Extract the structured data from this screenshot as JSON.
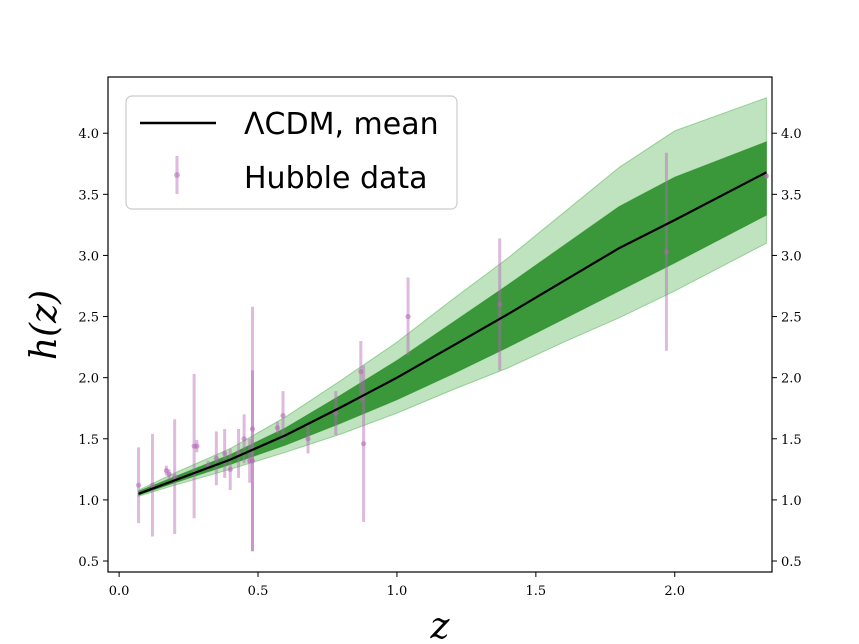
{
  "chart_data": {
    "type": "line",
    "xlabel": "z",
    "ylabel": "h(z)",
    "xlim": [
      -0.04,
      2.35
    ],
    "ylim": [
      0.41,
      4.46
    ],
    "xticks": [
      0.0,
      0.5,
      1.0,
      1.5,
      2.0
    ],
    "xtick_labels": [
      "0.0",
      "0.5",
      "1.0",
      "1.5",
      "2.0"
    ],
    "yticks": [
      0.5,
      1.0,
      1.5,
      2.0,
      2.5,
      3.0,
      3.5,
      4.0
    ],
    "ytick_labels": [
      "0.5",
      "1.0",
      "1.5",
      "2.0",
      "2.5",
      "3.0",
      "3.5",
      "4.0"
    ],
    "legend_position": "top-left",
    "colors": {
      "mean_line": "#000000",
      "band_outer": "#2ca02c",
      "band_inner": "#228b22",
      "data_points": "#b565b5"
    },
    "series": [
      {
        "name": "ΛCDM, mean",
        "kind": "line",
        "x": [
          0.07,
          0.2,
          0.4,
          0.6,
          0.8,
          1.0,
          1.2,
          1.4,
          1.6,
          1.8,
          2.0,
          2.33
        ],
        "y": [
          1.05,
          1.16,
          1.33,
          1.53,
          1.76,
          2.0,
          2.26,
          2.52,
          2.79,
          3.06,
          3.29,
          3.68
        ],
        "band_1sigma_lower": [
          1.04,
          1.14,
          1.29,
          1.45,
          1.63,
          1.82,
          2.03,
          2.25,
          2.48,
          2.71,
          2.94,
          3.33
        ],
        "band_1sigma_upper": [
          1.07,
          1.19,
          1.37,
          1.59,
          1.86,
          2.14,
          2.45,
          2.76,
          3.08,
          3.4,
          3.64,
          3.93
        ],
        "band_2sigma_lower": [
          1.03,
          1.12,
          1.25,
          1.39,
          1.54,
          1.71,
          1.9,
          2.08,
          2.29,
          2.49,
          2.71,
          3.1
        ],
        "band_2sigma_upper": [
          1.08,
          1.22,
          1.42,
          1.68,
          1.98,
          2.29,
          2.64,
          2.98,
          3.35,
          3.72,
          4.02,
          4.29
        ]
      },
      {
        "name": "Hubble data",
        "kind": "errorbar",
        "points": [
          {
            "x": 0.07,
            "y": 1.12,
            "err": 0.31
          },
          {
            "x": 0.12,
            "y": 1.12,
            "err": 0.42
          },
          {
            "x": 0.17,
            "y": 1.24,
            "err": 0.04
          },
          {
            "x": 0.18,
            "y": 1.21,
            "err": 0.04
          },
          {
            "x": 0.2,
            "y": 1.19,
            "err": 0.47
          },
          {
            "x": 0.27,
            "y": 1.44,
            "err": 0.59
          },
          {
            "x": 0.28,
            "y": 1.44,
            "err": 0.05
          },
          {
            "x": 0.32,
            "y": 1.28,
            "err": 0.04
          },
          {
            "x": 0.35,
            "y": 1.34,
            "err": 0.22
          },
          {
            "x": 0.38,
            "y": 1.38,
            "err": 0.2
          },
          {
            "x": 0.4,
            "y": 1.25,
            "err": 0.17
          },
          {
            "x": 0.43,
            "y": 1.38,
            "err": 0.2
          },
          {
            "x": 0.45,
            "y": 1.5,
            "err": 0.2
          },
          {
            "x": 0.47,
            "y": 1.32,
            "err": 0.18
          },
          {
            "x": 0.48,
            "y": 1.32,
            "err": 0.74
          },
          {
            "x": 0.48,
            "y": 1.58,
            "err": 1.0
          },
          {
            "x": 0.57,
            "y": 1.59,
            "err": 0.05
          },
          {
            "x": 0.59,
            "y": 1.69,
            "err": 0.2
          },
          {
            "x": 0.68,
            "y": 1.5,
            "err": 0.12
          },
          {
            "x": 0.78,
            "y": 1.71,
            "err": 0.18
          },
          {
            "x": 0.87,
            "y": 2.05,
            "err": 0.25
          },
          {
            "x": 0.88,
            "y": 1.46,
            "err": 0.64
          },
          {
            "x": 1.04,
            "y": 2.5,
            "err": 0.32
          },
          {
            "x": 1.37,
            "y": 2.6,
            "err": 0.54
          },
          {
            "x": 1.97,
            "y": 3.03,
            "err": 0.81
          },
          {
            "x": 2.33,
            "y": 3.65,
            "err": 0.02
          }
        ]
      }
    ],
    "legend": [
      {
        "label": "ΛCDM, mean",
        "kind": "line"
      },
      {
        "label": "Hubble data",
        "kind": "errorbar"
      }
    ]
  }
}
